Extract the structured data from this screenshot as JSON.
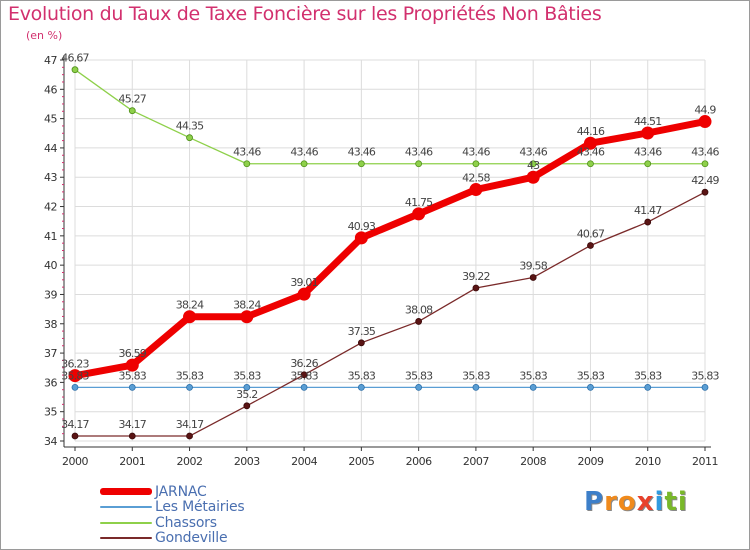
{
  "title": "Evolution du Taux de Taxe Foncière sur les Propriétés Non Bâties",
  "unit_label": "(en %)",
  "brand": {
    "letters": [
      "P",
      "r",
      "o",
      "x",
      "i",
      "t",
      "i"
    ],
    "colors": [
      "#3d7fc9",
      "#f08a1c",
      "#f08a1c",
      "#e8412c",
      "#2f9be0",
      "#79b829",
      "#79b829"
    ]
  },
  "chart_data": {
    "type": "line",
    "title": "Evolution du Taux de Taxe Foncière sur les Propriétés Non Bâties",
    "ylabel": "(en %)",
    "xlabel": "",
    "ylim": [
      34,
      47
    ],
    "yticks": [
      34,
      35,
      36,
      37,
      38,
      39,
      40,
      41,
      42,
      43,
      44,
      45,
      46,
      47
    ],
    "categories": [
      "2000",
      "2001",
      "2002",
      "2003",
      "2004",
      "2005",
      "2006",
      "2007",
      "2008",
      "2009",
      "2010",
      "2011"
    ],
    "series": [
      {
        "name": "JARNAC",
        "color": "#ee0000",
        "values": [
          36.23,
          36.59,
          38.24,
          38.24,
          39.01,
          40.93,
          41.75,
          42.58,
          43,
          44.16,
          44.51,
          44.9
        ],
        "labels": [
          "36.23",
          "36.59",
          "38.24",
          "38.24",
          "39.01",
          "40.93",
          "41.75",
          "42.58",
          "43",
          "44.16",
          "44.51",
          "44.9"
        ]
      },
      {
        "name": "Les Métairies",
        "color": "#5a9ed4",
        "values": [
          35.83,
          35.83,
          35.83,
          35.83,
          35.83,
          35.83,
          35.83,
          35.83,
          35.83,
          35.83,
          35.83,
          35.83
        ],
        "labels": [
          "35.83",
          "35.83",
          "35.83",
          "35.83",
          "35.83",
          "35.83",
          "35.83",
          "35.83",
          "35.83",
          "35.83",
          "35.83",
          "35.83"
        ]
      },
      {
        "name": "Chassors",
        "color": "#8ed04a",
        "values": [
          46.67,
          45.27,
          44.35,
          43.46,
          43.46,
          43.46,
          43.46,
          43.46,
          43.46,
          43.46,
          43.46,
          43.46
        ],
        "labels": [
          "46.67",
          "45.27",
          "44.35",
          "43.46",
          "43.46",
          "43.46",
          "43.46",
          "43.46",
          "43.46",
          "43.46",
          "43.46",
          "43.46"
        ]
      },
      {
        "name": "Gondeville",
        "color": "#7a2a2a",
        "values": [
          34.17,
          34.17,
          34.17,
          35.2,
          36.26,
          37.35,
          38.08,
          39.22,
          39.58,
          40.67,
          41.47,
          42.49
        ],
        "labels": [
          "34.17",
          "34.17",
          "34.17",
          "35.2",
          "36.26",
          "37.35",
          "38.08",
          "39.22",
          "39.58",
          "40.67",
          "41.47",
          "42.49"
        ]
      }
    ]
  }
}
